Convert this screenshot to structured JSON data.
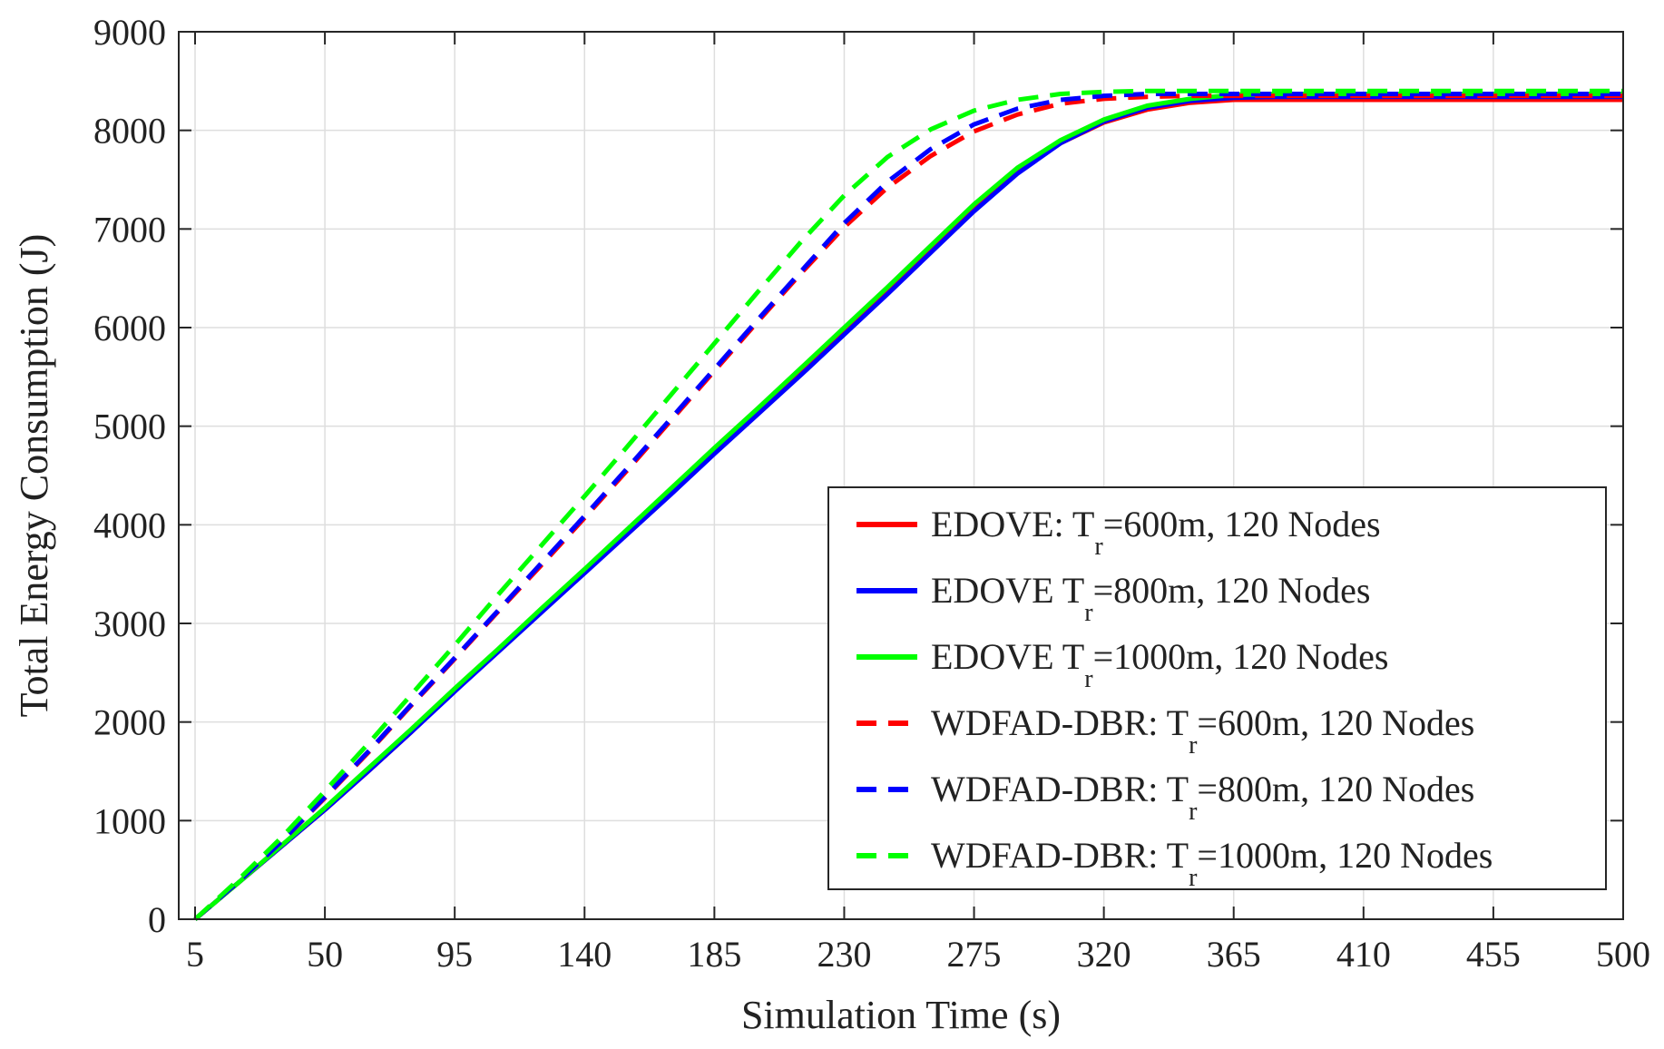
{
  "chart_data": {
    "type": "line",
    "title": "",
    "xlabel": "Simulation Time (s)",
    "ylabel": "Total Energy Consumption (J)",
    "xlim": [
      0,
      500
    ],
    "ylim": [
      0,
      9000
    ],
    "xticks": [
      5,
      50,
      95,
      140,
      185,
      230,
      275,
      320,
      365,
      410,
      455,
      500
    ],
    "yticks": [
      0,
      1000,
      2000,
      3000,
      4000,
      5000,
      6000,
      7000,
      8000,
      9000
    ],
    "grid": true,
    "legend_position": "lower-right",
    "x": [
      5,
      20,
      35,
      50,
      65,
      80,
      95,
      110,
      125,
      140,
      155,
      170,
      185,
      200,
      215,
      230,
      245,
      260,
      275,
      290,
      305,
      320,
      335,
      350,
      365,
      380,
      400,
      430,
      460,
      500
    ],
    "series": [
      {
        "name": "EDOVE: T_r=600m, 120 Nodes",
        "label_prefix": "EDOVE: T",
        "label_sub": "r",
        "label_suffix": "=600m, 120 Nodes",
        "color": "#ff0000",
        "style": "solid",
        "values": [
          0,
          370,
          740,
          1110,
          1500,
          1900,
          2320,
          2720,
          3120,
          3520,
          3920,
          4320,
          4740,
          5140,
          5540,
          5950,
          6360,
          6780,
          7200,
          7580,
          7870,
          8080,
          8210,
          8280,
          8310,
          8310,
          8310,
          8310,
          8310,
          8310
        ]
      },
      {
        "name": "EDOVE T_r=800m, 120 Nodes",
        "label_prefix": "EDOVE T",
        "label_sub": "r",
        "label_suffix": "=800m, 120 Nodes",
        "color": "#0000ff",
        "style": "solid",
        "values": [
          0,
          370,
          740,
          1110,
          1500,
          1900,
          2310,
          2710,
          3110,
          3510,
          3910,
          4310,
          4720,
          5120,
          5520,
          5930,
          6340,
          6760,
          7180,
          7560,
          7870,
          8090,
          8230,
          8300,
          8330,
          8340,
          8340,
          8340,
          8340,
          8340
        ]
      },
      {
        "name": "EDOVE T_r=1000m, 120 Nodes",
        "label_prefix": "EDOVE T",
        "label_sub": "r",
        "label_suffix": "=1000m, 120 Nodes",
        "color": "#00ff00",
        "style": "solid",
        "values": [
          0,
          370,
          750,
          1130,
          1530,
          1930,
          2340,
          2740,
          3150,
          3550,
          3960,
          4370,
          4780,
          5180,
          5590,
          6000,
          6410,
          6830,
          7250,
          7620,
          7900,
          8110,
          8250,
          8320,
          8360,
          8370,
          8370,
          8370,
          8370,
          8370
        ]
      },
      {
        "name": "WDFAD-DBR: T_r=600m, 120 Nodes",
        "label_prefix": "WDFAD-DBR: T",
        "label_sub": "r",
        "label_suffix": "=600m, 120 Nodes",
        "color": "#ff0000",
        "style": "dashed",
        "values": [
          0,
          380,
          790,
          1230,
          1690,
          2170,
          2640,
          3120,
          3590,
          4070,
          4560,
          5060,
          5560,
          6060,
          6550,
          7020,
          7420,
          7740,
          7990,
          8160,
          8270,
          8320,
          8340,
          8350,
          8350,
          8350,
          8350,
          8350,
          8350,
          8350
        ]
      },
      {
        "name": "WDFAD-DBR: T_r=800m, 120 Nodes",
        "label_prefix": "WDFAD-DBR: T",
        "label_sub": "r",
        "label_suffix": "=800m, 120 Nodes",
        "color": "#0000ff",
        "style": "dashed",
        "values": [
          0,
          380,
          790,
          1240,
          1700,
          2180,
          2650,
          3130,
          3610,
          4090,
          4580,
          5080,
          5580,
          6080,
          6570,
          7060,
          7480,
          7810,
          8060,
          8220,
          8310,
          8350,
          8370,
          8370,
          8370,
          8370,
          8370,
          8370,
          8370,
          8370
        ]
      },
      {
        "name": "WDFAD-DBR: T_r=1000m, 120 Nodes",
        "label_prefix": "WDFAD-DBR: T",
        "label_sub": "r",
        "label_suffix": "=1000m, 120 Nodes",
        "color": "#00ff00",
        "style": "dashed",
        "values": [
          0,
          400,
          830,
          1300,
          1780,
          2280,
          2780,
          3290,
          3790,
          4290,
          4800,
          5320,
          5840,
          6360,
          6870,
          7340,
          7730,
          8010,
          8200,
          8310,
          8370,
          8390,
          8400,
          8400,
          8400,
          8400,
          8400,
          8400,
          8400,
          8400
        ]
      }
    ]
  }
}
